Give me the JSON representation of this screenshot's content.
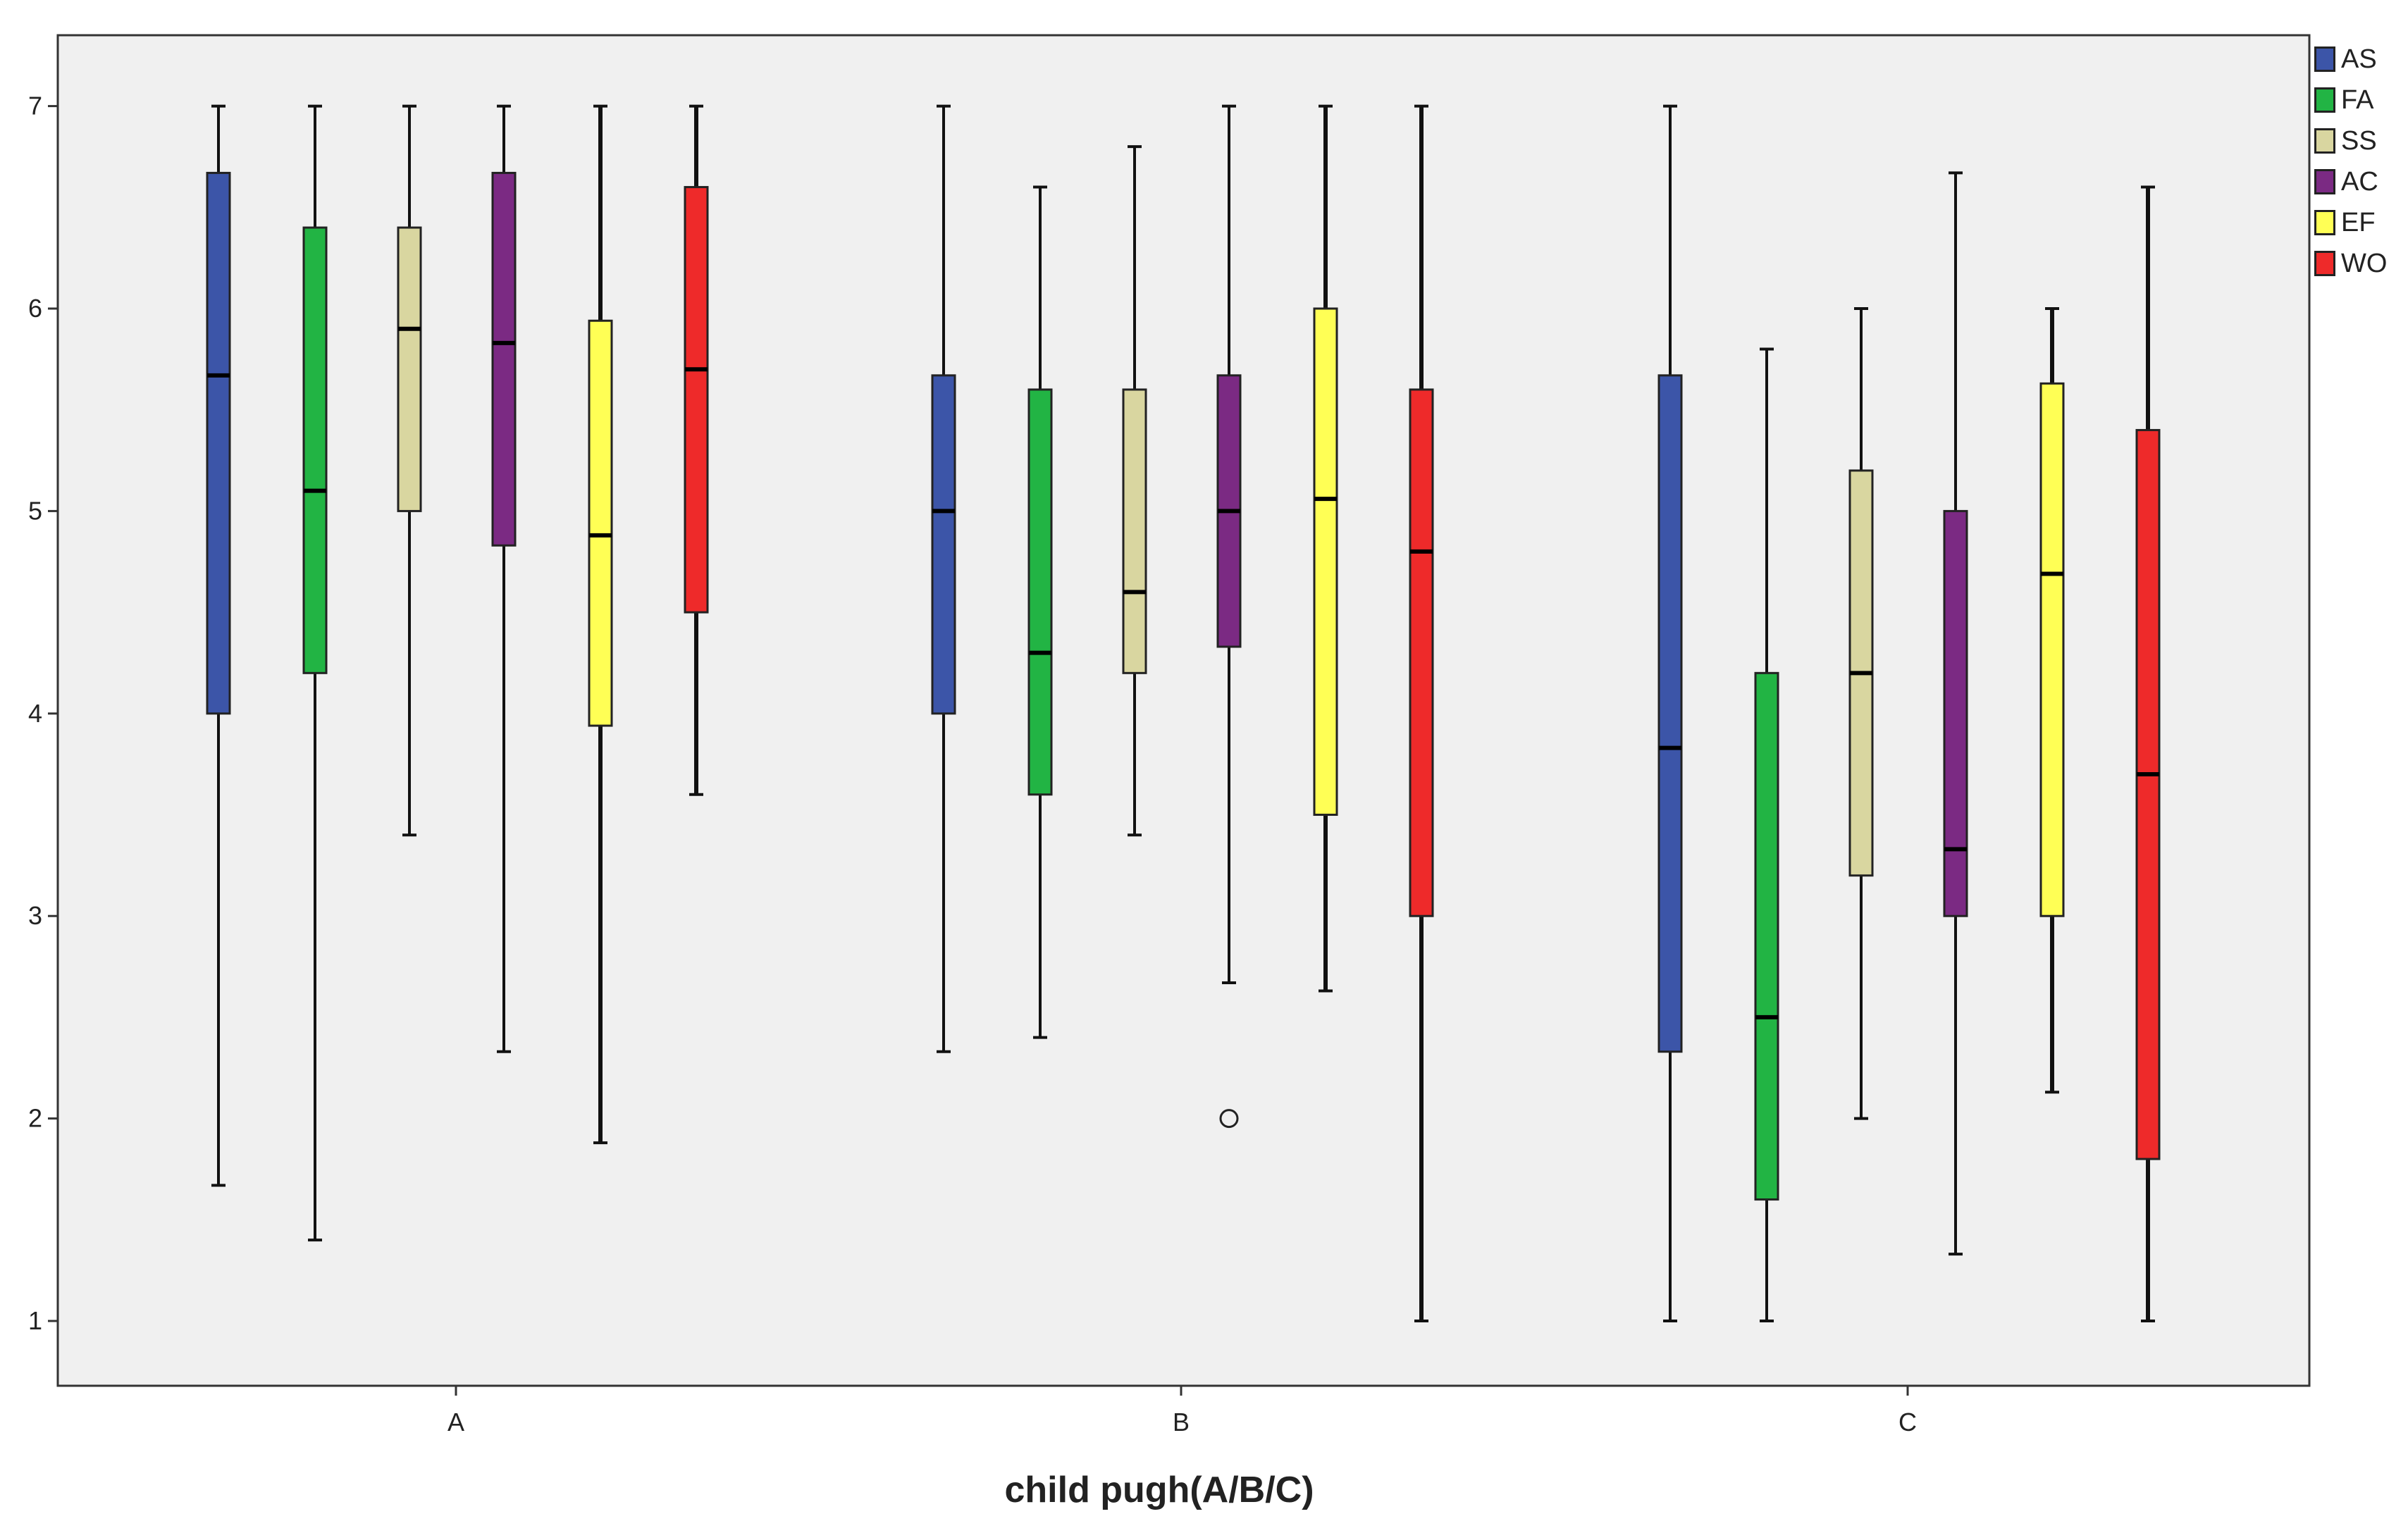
{
  "chart_data": {
    "type": "boxplot",
    "title": "",
    "xlabel": "child pugh(A/B/C)",
    "ylabel": "",
    "ylim": [
      0.68,
      7.35
    ],
    "yticks": [
      1,
      2,
      3,
      4,
      5,
      6,
      7
    ],
    "categories": [
      "A",
      "B",
      "C"
    ],
    "series": [
      {
        "name": "AS",
        "color": "#3c55a8",
        "boxes": [
          {
            "min": 1.67,
            "q1": 4.0,
            "median": 5.67,
            "q3": 6.67,
            "max": 7.0
          },
          {
            "min": 2.33,
            "q1": 4.0,
            "median": 5.0,
            "q3": 5.67,
            "max": 7.0
          },
          {
            "min": 1.0,
            "q1": 2.33,
            "median": 3.83,
            "q3": 5.67,
            "max": 7.0
          }
        ]
      },
      {
        "name": "FA",
        "color": "#22b444",
        "boxes": [
          {
            "min": 1.4,
            "q1": 4.2,
            "median": 5.1,
            "q3": 6.4,
            "max": 7.0
          },
          {
            "min": 2.4,
            "q1": 3.6,
            "median": 4.3,
            "q3": 5.6,
            "max": 6.6
          },
          {
            "min": 1.0,
            "q1": 1.6,
            "median": 2.5,
            "q3": 4.2,
            "max": 5.8
          }
        ]
      },
      {
        "name": "SS",
        "color": "#d9d6a0",
        "boxes": [
          {
            "min": 3.4,
            "q1": 5.0,
            "median": 5.9,
            "q3": 6.4,
            "max": 7.0
          },
          {
            "min": 3.4,
            "q1": 4.2,
            "median": 4.6,
            "q3": 5.6,
            "max": 6.8
          },
          {
            "min": 2.0,
            "q1": 3.2,
            "median": 4.2,
            "q3": 5.2,
            "max": 6.0
          }
        ]
      },
      {
        "name": "AC",
        "color": "#7b2a83",
        "boxes": [
          {
            "min": 2.33,
            "q1": 4.83,
            "median": 5.83,
            "q3": 6.67,
            "max": 7.0
          },
          {
            "min": 2.67,
            "q1": 4.33,
            "median": 5.0,
            "q3": 5.67,
            "max": 7.0,
            "outliers": [
              2.0
            ]
          },
          {
            "min": 1.33,
            "q1": 3.0,
            "median": 3.33,
            "q3": 5.0,
            "max": 6.67
          }
        ]
      },
      {
        "name": "EF",
        "color": "#ffff55",
        "boxes": [
          {
            "min": 1.88,
            "q1": 3.94,
            "median": 4.88,
            "q3": 5.94,
            "max": 7.0
          },
          {
            "min": 2.63,
            "q1": 3.5,
            "median": 5.06,
            "q3": 6.0,
            "max": 7.0
          },
          {
            "min": 2.13,
            "q1": 3.0,
            "median": 4.69,
            "q3": 5.63,
            "max": 6.0
          }
        ]
      },
      {
        "name": "WO",
        "color": "#ee2a2a",
        "boxes": [
          {
            "min": 3.6,
            "q1": 4.5,
            "median": 5.7,
            "q3": 6.6,
            "max": 7.0
          },
          {
            "min": 1.0,
            "q1": 3.0,
            "median": 4.8,
            "q3": 5.6,
            "max": 7.0
          },
          {
            "min": 1.0,
            "q1": 1.8,
            "median": 3.7,
            "q3": 5.4,
            "max": 6.6
          }
        ]
      }
    ],
    "legend_position": "right",
    "plot_background": "#f0f0f0"
  }
}
